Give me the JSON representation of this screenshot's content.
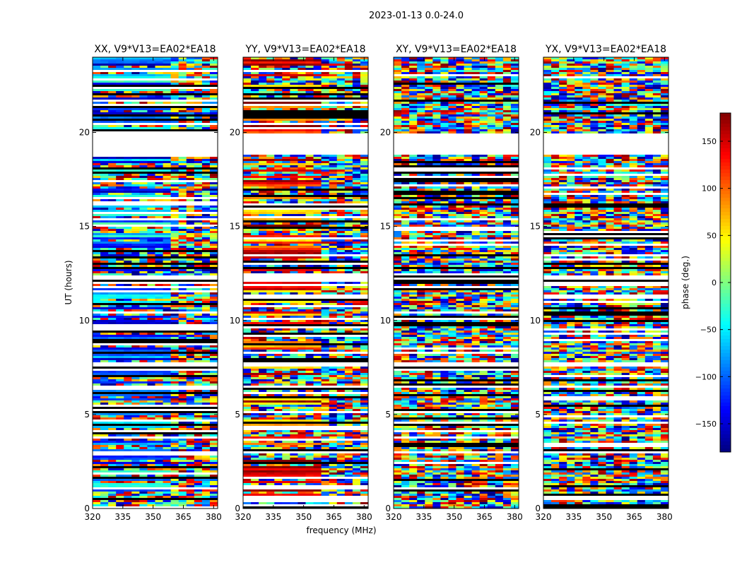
{
  "figure_title": "2023-01-13 0.0-24.0",
  "chart_data": {
    "type": "heatmap",
    "title": "2023-01-13 0.0-24.0",
    "xlabel": "frequency (MHz)",
    "ylabel": "UT (hours)",
    "xlim": [
      320,
      382
    ],
    "ylim": [
      0,
      24
    ],
    "x_ticks": [
      320,
      335,
      350,
      365,
      380
    ],
    "y_ticks": [
      0,
      5,
      10,
      15,
      20
    ],
    "panels": [
      {
        "title": "XX, V9*V13=EA02*EA18",
        "polarization": "XX"
      },
      {
        "title": "YY, V9*V13=EA02*EA18",
        "polarization": "YY"
      },
      {
        "title": "XY, V9*V13=EA02*EA18",
        "polarization": "XY"
      },
      {
        "title": "YX, V9*V13=EA02*EA18",
        "polarization": "YX"
      }
    ],
    "colorbar": {
      "label": "phase (deg.)",
      "range": [
        -180,
        180
      ],
      "ticks": [
        -150,
        -100,
        -50,
        0,
        50,
        100,
        150
      ],
      "colormap": "jet"
    },
    "flagged_gaps_hours": [
      [
        18.85,
        19.95
      ],
      [
        7.6,
        7.75
      ],
      [
        12.15,
        12.25
      ],
      [
        2.95,
        3.0
      ]
    ],
    "strong_rfi_bands_hours": [
      [
        12.05,
        12.15
      ],
      [
        12.25,
        12.35
      ]
    ]
  }
}
